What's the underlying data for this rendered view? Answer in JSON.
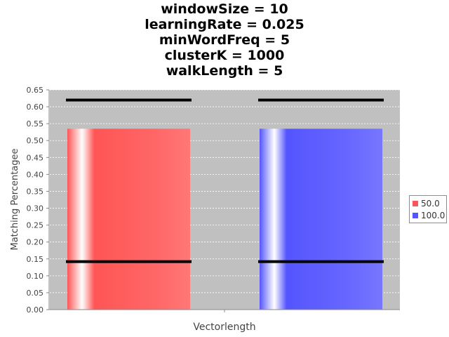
{
  "chart_data": {
    "type": "bar",
    "title_lines": [
      "windowSize = 10",
      "learningRate = 0.025",
      "minWordFreq = 5",
      "clusterK = 1000",
      "walkLength = 5"
    ],
    "xlabel": "Vectorlength",
    "ylabel": "Matching Percentagee",
    "ylim": [
      0,
      0.65
    ],
    "yticks": [
      "0.00",
      "0.05",
      "0.10",
      "0.15",
      "0.20",
      "0.25",
      "0.30",
      "0.35",
      "0.40",
      "0.45",
      "0.50",
      "0.55",
      "0.60",
      "0.65"
    ],
    "grid": true,
    "legend_position": "right",
    "series": [
      {
        "name": "50.0",
        "value": 0.535,
        "range_low": 0.142,
        "range_high": 0.62,
        "color": "#ff5555"
      },
      {
        "name": "100.0",
        "value": 0.535,
        "range_low": 0.142,
        "range_high": 0.62,
        "color": "#5555ff"
      }
    ]
  }
}
